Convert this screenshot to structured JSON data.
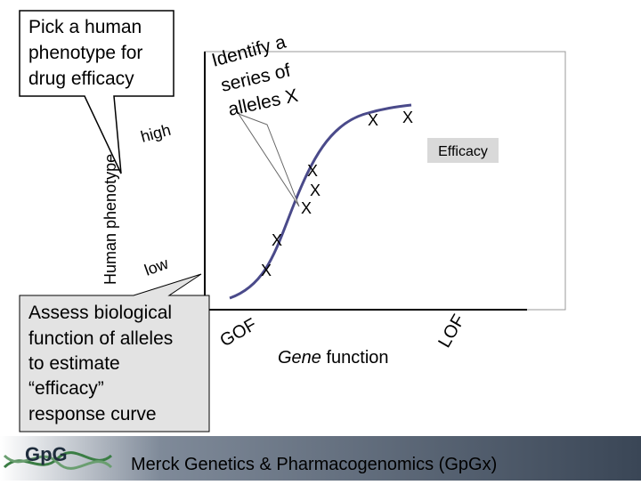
{
  "callouts": {
    "phenotype": [
      "Pick a human",
      "phenotype for",
      "drug efficacy"
    ],
    "alleles": [
      "Identify a",
      "series of",
      "alleles X"
    ],
    "function": [
      "Assess biological",
      "function of alleles",
      "to estimate",
      "“efficacy”",
      "response curve"
    ]
  },
  "axes": {
    "y_label": "Human phenotype",
    "high": "high",
    "low": "low",
    "gof": "GOF",
    "gene": "Gene",
    "function": " function",
    "lof": "LOF"
  },
  "legend": "Efficacy",
  "markers": [
    "X",
    "X",
    "X",
    "X",
    "X",
    "X",
    "X"
  ],
  "footer": {
    "logo": "GpG",
    "text": "Merck Genetics & Pharmacogenomics (GpGx)"
  }
}
